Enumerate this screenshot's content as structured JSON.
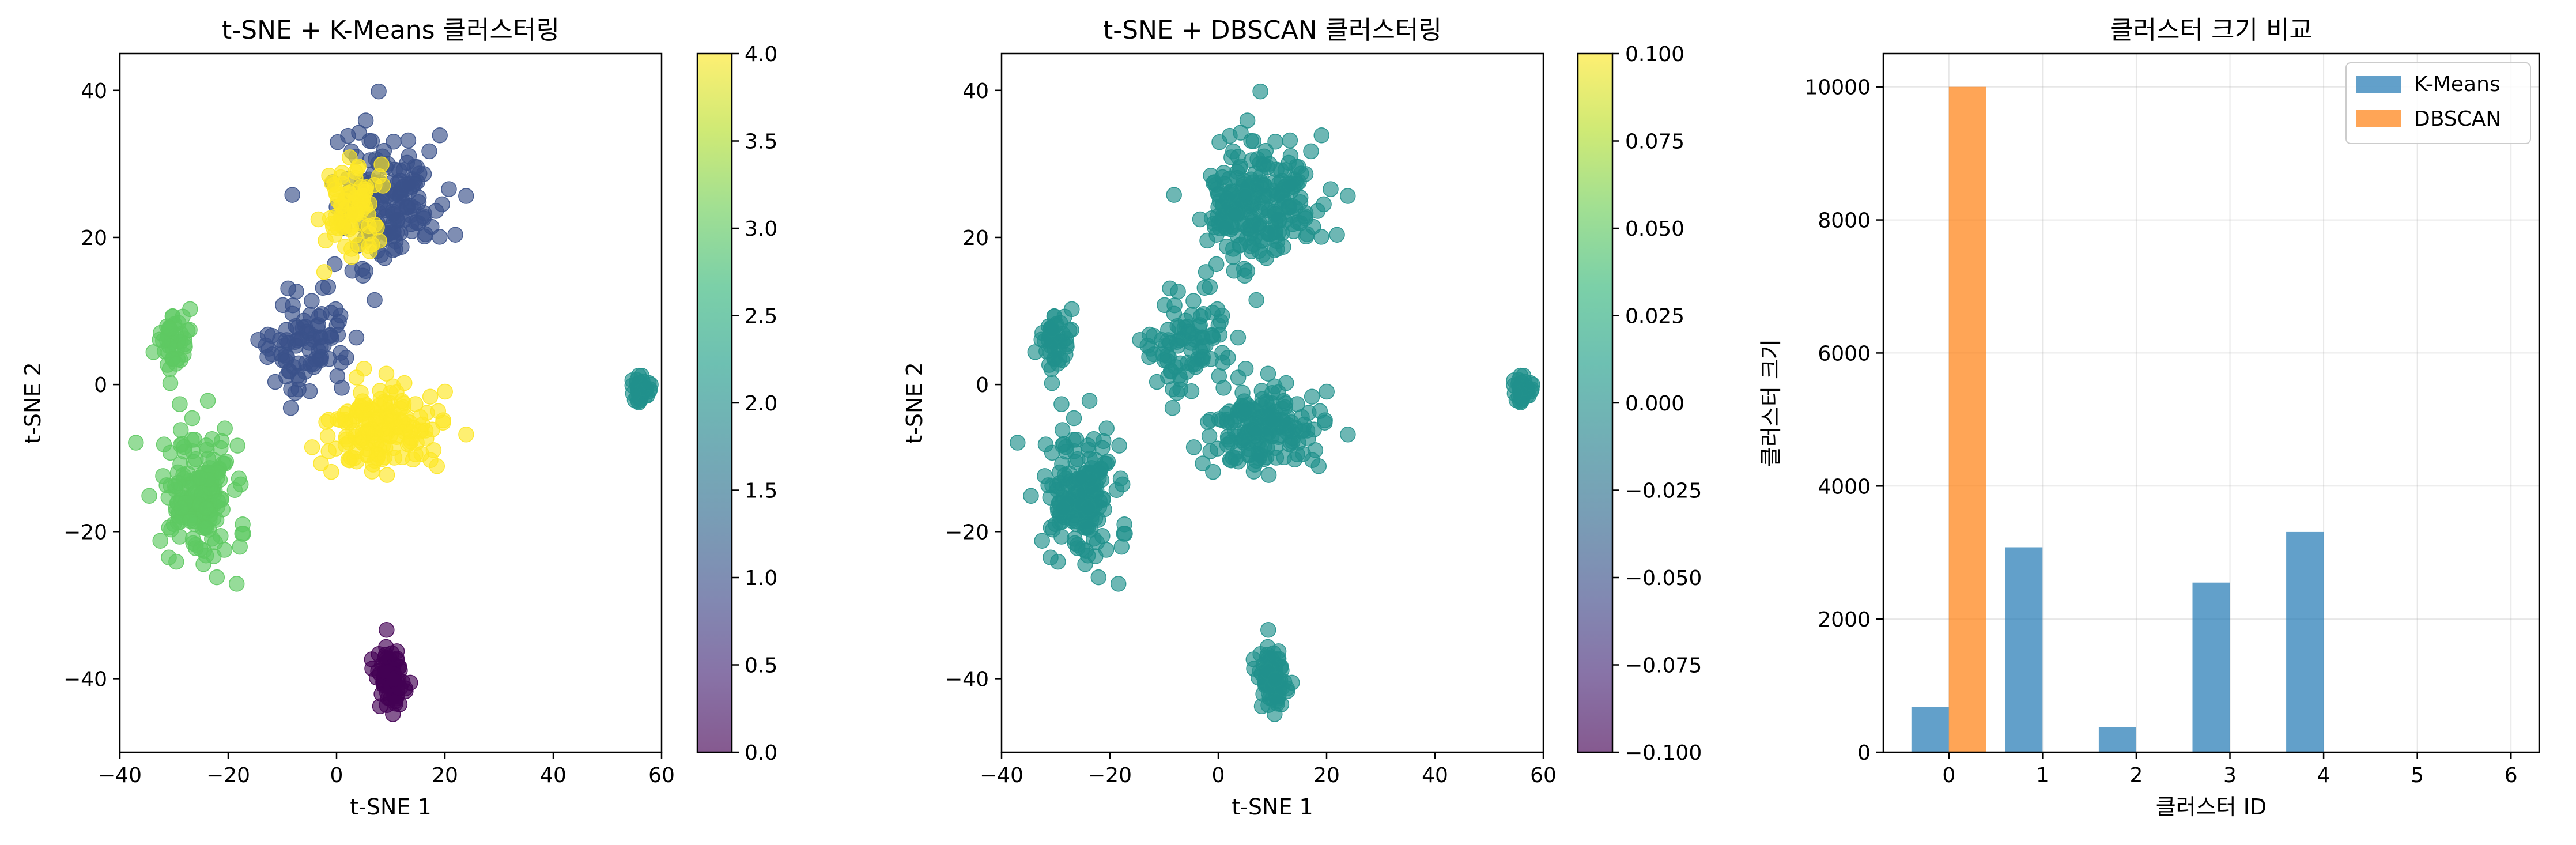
{
  "chart_data": [
    {
      "type": "scatter",
      "title": "t-SNE + K-Means 클러스터링",
      "xlabel": "t-SNE 1",
      "ylabel": "t-SNE 2",
      "xlim": [
        -40,
        60
      ],
      "ylim": [
        -50,
        45
      ],
      "x_ticks": [
        -40,
        -20,
        0,
        20,
        40,
        60
      ],
      "y_ticks": [
        -40,
        -20,
        0,
        20,
        40
      ],
      "x_tick_labels": [
        "−40",
        "−20",
        "0",
        "20",
        "40",
        "60"
      ],
      "y_tick_labels": [
        "−40",
        "−20",
        "0",
        "20",
        "40"
      ],
      "colormap": "viridis",
      "marker_alpha": 0.65,
      "colorbar": {
        "range": [
          0.0,
          4.0
        ],
        "ticks": [
          0,
          0.5,
          1,
          1.5,
          2,
          2.5,
          3,
          3.5,
          4
        ],
        "tick_labels": [
          "0.0",
          "0.5",
          "1.0",
          "1.5",
          "2.0",
          "2.5",
          "3.0",
          "3.5",
          "4.0"
        ]
      },
      "clusters": [
        {
          "label": 0,
          "color": "#440154",
          "center": [
            10,
            -40
          ],
          "spread": [
            2.5,
            4
          ],
          "n": 70
        },
        {
          "label": 1,
          "color": "#3b528b",
          "center": [
            10,
            25
          ],
          "spread": [
            9,
            8
          ],
          "n": 150
        },
        {
          "label": 1,
          "color": "#3b528b",
          "center": [
            -5,
            5
          ],
          "spread": [
            7,
            6
          ],
          "n": 90
        },
        {
          "label": 2,
          "color": "#21918c",
          "center": [
            56,
            -1
          ],
          "spread": [
            1.5,
            1.5
          ],
          "n": 45
        },
        {
          "label": 3,
          "color": "#5ec962",
          "center": [
            -25,
            -15
          ],
          "spread": [
            6,
            8
          ],
          "n": 170
        },
        {
          "label": 3,
          "color": "#5ec962",
          "center": [
            -30,
            6
          ],
          "spread": [
            3,
            4
          ],
          "n": 45
        },
        {
          "label": 4,
          "color": "#fde725",
          "center": [
            8,
            -6
          ],
          "spread": [
            9,
            5
          ],
          "n": 160
        },
        {
          "label": 4,
          "color": "#fde725",
          "center": [
            3,
            24
          ],
          "spread": [
            5,
            5
          ],
          "n": 80
        }
      ]
    },
    {
      "type": "scatter",
      "title": "t-SNE + DBSCAN 클러스터링",
      "xlabel": "t-SNE 1",
      "ylabel": "t-SNE 2",
      "xlim": [
        -40,
        60
      ],
      "ylim": [
        -50,
        45
      ],
      "x_ticks": [
        -40,
        -20,
        0,
        20,
        40,
        60
      ],
      "y_ticks": [
        -40,
        -20,
        0,
        20,
        40
      ],
      "x_tick_labels": [
        "−40",
        "−20",
        "0",
        "20",
        "40",
        "60"
      ],
      "y_tick_labels": [
        "−40",
        "−20",
        "0",
        "20",
        "40"
      ],
      "colormap": "viridis",
      "marker_alpha": 0.65,
      "point_color": "#21918c",
      "colorbar": {
        "range": [
          -0.1,
          0.1
        ],
        "ticks": [
          -0.1,
          -0.075,
          -0.05,
          -0.025,
          0,
          0.025,
          0.05,
          0.075,
          0.1
        ],
        "tick_labels": [
          "−0.100",
          "−0.075",
          "−0.050",
          "−0.025",
          "0.000",
          "0.025",
          "0.050",
          "0.075",
          "0.100"
        ]
      },
      "clusters": [
        {
          "label": 0,
          "center": [
            10,
            -40
          ],
          "spread": [
            2.5,
            4
          ],
          "n": 70
        },
        {
          "label": 0,
          "center": [
            10,
            25
          ],
          "spread": [
            9,
            8
          ],
          "n": 150
        },
        {
          "label": 0,
          "center": [
            -5,
            5
          ],
          "spread": [
            7,
            6
          ],
          "n": 90
        },
        {
          "label": 0,
          "center": [
            56,
            -1
          ],
          "spread": [
            1.5,
            1.5
          ],
          "n": 45
        },
        {
          "label": 0,
          "center": [
            -25,
            -15
          ],
          "spread": [
            6,
            8
          ],
          "n": 170
        },
        {
          "label": 0,
          "center": [
            -30,
            6
          ],
          "spread": [
            3,
            4
          ],
          "n": 45
        },
        {
          "label": 0,
          "center": [
            8,
            -6
          ],
          "spread": [
            9,
            5
          ],
          "n": 160
        },
        {
          "label": 0,
          "center": [
            3,
            24
          ],
          "spread": [
            5,
            5
          ],
          "n": 80
        }
      ]
    },
    {
      "type": "bar",
      "title": "클러스터 크기 비교",
      "xlabel": "클러스터 ID",
      "ylabel": "클러스터 크기",
      "xlim": [
        -0.7,
        6.3
      ],
      "ylim": [
        0,
        10500
      ],
      "x_ticks": [
        0,
        1,
        2,
        3,
        4,
        5,
        6
      ],
      "y_ticks": [
        0,
        2000,
        4000,
        6000,
        8000,
        10000
      ],
      "grid": true,
      "legend_position": "top-right",
      "series": [
        {
          "name": "K-Means",
          "color": "#1f77b4",
          "offset": -0.2,
          "x": [
            0,
            1,
            2,
            3,
            4
          ],
          "values": [
            680,
            3080,
            380,
            2550,
            3310
          ]
        },
        {
          "name": "DBSCAN",
          "color": "#ff7f0e",
          "offset": 0.2,
          "x": [
            0
          ],
          "values": [
            10000
          ]
        }
      ]
    }
  ]
}
